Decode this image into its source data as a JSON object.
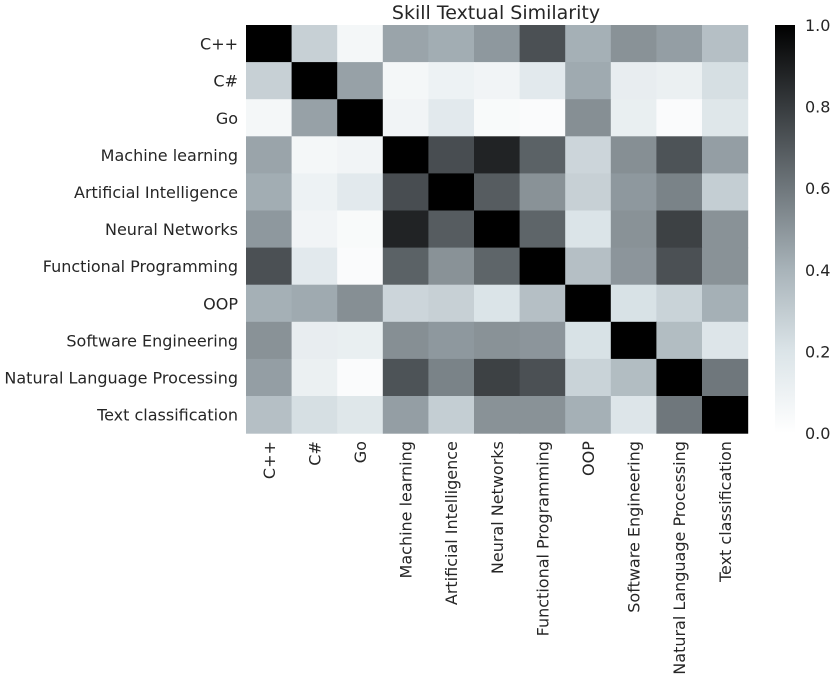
{
  "chart_data": {
    "type": "heatmap",
    "title": "Skill Textual Similarity",
    "categories": [
      "C++",
      "C#",
      "Go",
      "Machine learning",
      "Artificial Intelligence",
      "Neural Networks",
      "Functional Programming",
      "OOP",
      "Software Engineering",
      "Natural Language Processing",
      "Text classification"
    ],
    "matrix": [
      [
        1.0,
        0.28,
        0.06,
        0.45,
        0.42,
        0.49,
        0.73,
        0.41,
        0.51,
        0.47,
        0.35
      ],
      [
        0.28,
        1.0,
        0.46,
        0.06,
        0.1,
        0.08,
        0.16,
        0.43,
        0.13,
        0.11,
        0.22
      ],
      [
        0.06,
        0.46,
        1.0,
        0.08,
        0.16,
        0.04,
        0.03,
        0.52,
        0.12,
        0.03,
        0.18
      ],
      [
        0.45,
        0.06,
        0.08,
        1.0,
        0.74,
        0.88,
        0.67,
        0.26,
        0.52,
        0.72,
        0.47
      ],
      [
        0.42,
        0.1,
        0.16,
        0.74,
        1.0,
        0.69,
        0.51,
        0.28,
        0.49,
        0.56,
        0.29
      ],
      [
        0.49,
        0.08,
        0.04,
        0.88,
        0.69,
        1.0,
        0.66,
        0.2,
        0.51,
        0.78,
        0.51
      ],
      [
        0.73,
        0.16,
        0.03,
        0.67,
        0.51,
        0.66,
        1.0,
        0.35,
        0.5,
        0.73,
        0.51
      ],
      [
        0.41,
        0.43,
        0.52,
        0.26,
        0.28,
        0.2,
        0.35,
        1.0,
        0.21,
        0.27,
        0.41
      ],
      [
        0.51,
        0.13,
        0.12,
        0.52,
        0.49,
        0.51,
        0.5,
        0.21,
        1.0,
        0.36,
        0.19
      ],
      [
        0.47,
        0.11,
        0.03,
        0.72,
        0.56,
        0.78,
        0.73,
        0.27,
        0.36,
        1.0,
        0.6
      ],
      [
        0.35,
        0.22,
        0.18,
        0.47,
        0.29,
        0.51,
        0.51,
        0.41,
        0.19,
        0.6,
        1.0
      ]
    ],
    "colorbar": {
      "range": [
        0.0,
        1.0
      ],
      "ticks": [
        "0.0",
        "0.2",
        "0.4",
        "0.6",
        "0.8",
        "1.0"
      ],
      "colors": [
        "#ffffff",
        "#dbe4e8",
        "#a8b3b9",
        "#6f777c",
        "#373b3e",
        "#000000"
      ]
    }
  }
}
